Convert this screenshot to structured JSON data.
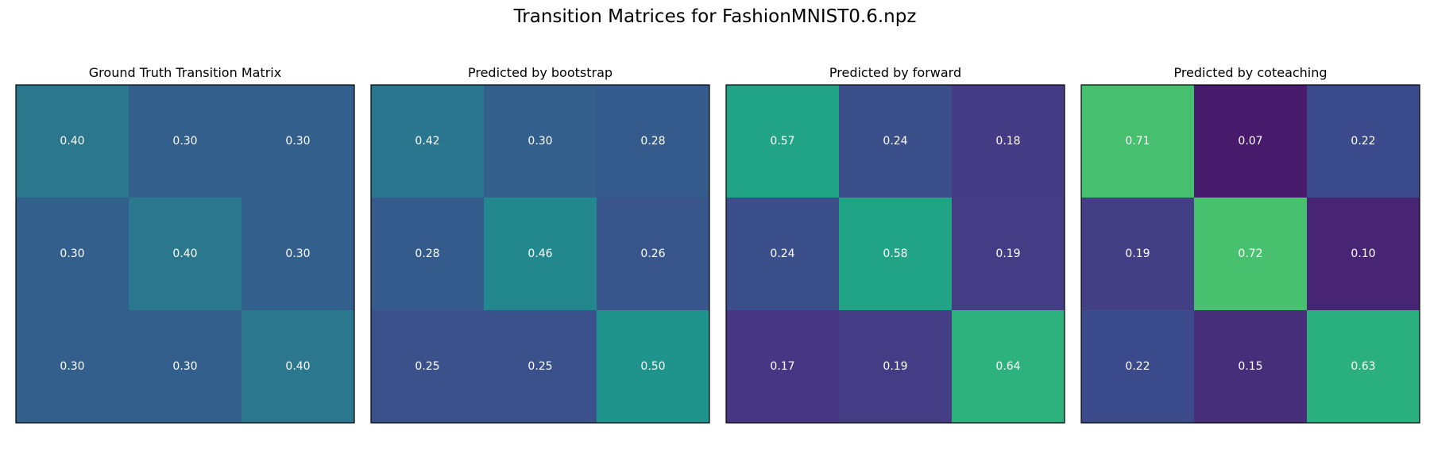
{
  "figure": {
    "title": "Transition Matrices for FashionMNIST0.6.npz"
  },
  "chart_data": [
    {
      "type": "heatmap",
      "title": "Ground Truth Transition Matrix",
      "rows": 3,
      "cols": 3,
      "values": [
        [
          0.4,
          0.3,
          0.3
        ],
        [
          0.3,
          0.4,
          0.3
        ],
        [
          0.3,
          0.3,
          0.4
        ]
      ],
      "labels": [
        [
          "0.40",
          "0.30",
          "0.30"
        ],
        [
          "0.30",
          "0.40",
          "0.30"
        ],
        [
          "0.30",
          "0.30",
          "0.40"
        ]
      ],
      "colors": [
        [
          "#2b788e",
          "#335f8d",
          "#335f8d"
        ],
        [
          "#335f8d",
          "#2b788e",
          "#335f8d"
        ],
        [
          "#335f8d",
          "#335f8d",
          "#2b788e"
        ]
      ],
      "colormap": "viridis",
      "ticks": false
    },
    {
      "type": "heatmap",
      "title": "Predicted by bootstrap",
      "rows": 3,
      "cols": 3,
      "values": [
        [
          0.42,
          0.3,
          0.28
        ],
        [
          0.28,
          0.46,
          0.26
        ],
        [
          0.25,
          0.25,
          0.5
        ]
      ],
      "labels": [
        [
          "0.42",
          "0.30",
          "0.28"
        ],
        [
          "0.28",
          "0.46",
          "0.26"
        ],
        [
          "0.25",
          "0.25",
          "0.50"
        ]
      ],
      "colors": [
        [
          "#2a768e",
          "#335f8d",
          "#355a8c"
        ],
        [
          "#355a8c",
          "#23888e",
          "#38568c"
        ],
        [
          "#3b518b",
          "#3b518b",
          "#1f948c"
        ]
      ],
      "colormap": "viridis",
      "ticks": false
    },
    {
      "type": "heatmap",
      "title": "Predicted by forward",
      "rows": 3,
      "cols": 3,
      "values": [
        [
          0.57,
          0.24,
          0.18
        ],
        [
          0.24,
          0.58,
          0.19
        ],
        [
          0.17,
          0.19,
          0.64
        ]
      ],
      "labels": [
        [
          "0.57",
          "0.24",
          "0.18"
        ],
        [
          "0.24",
          "0.58",
          "0.19"
        ],
        [
          "0.17",
          "0.19",
          "0.64"
        ]
      ],
      "colors": [
        [
          "#21a386",
          "#3b4f8a",
          "#453a84"
        ],
        [
          "#3b4f8a",
          "#21a385",
          "#443d85"
        ],
        [
          "#473683",
          "#443d85",
          "#2db27d"
        ]
      ],
      "colormap": "viridis",
      "ticks": false
    },
    {
      "type": "heatmap",
      "title": "Predicted by coteaching",
      "rows": 3,
      "cols": 3,
      "values": [
        [
          0.71,
          0.07,
          0.22
        ],
        [
          0.19,
          0.72,
          0.1
        ],
        [
          0.22,
          0.15,
          0.63
        ]
      ],
      "labels": [
        [
          "0.71",
          "0.07",
          "0.22"
        ],
        [
          "0.19",
          "0.72",
          "0.10"
        ],
        [
          "0.22",
          "0.15",
          "0.63"
        ]
      ],
      "colors": [
        [
          "#46c06f",
          "#481a6c",
          "#3b4a8a"
        ],
        [
          "#423f85",
          "#48c16e",
          "#482475"
        ],
        [
          "#3b4a8a",
          "#472e7b",
          "#2aaf7f"
        ]
      ],
      "colormap": "viridis",
      "ticks": false
    }
  ]
}
